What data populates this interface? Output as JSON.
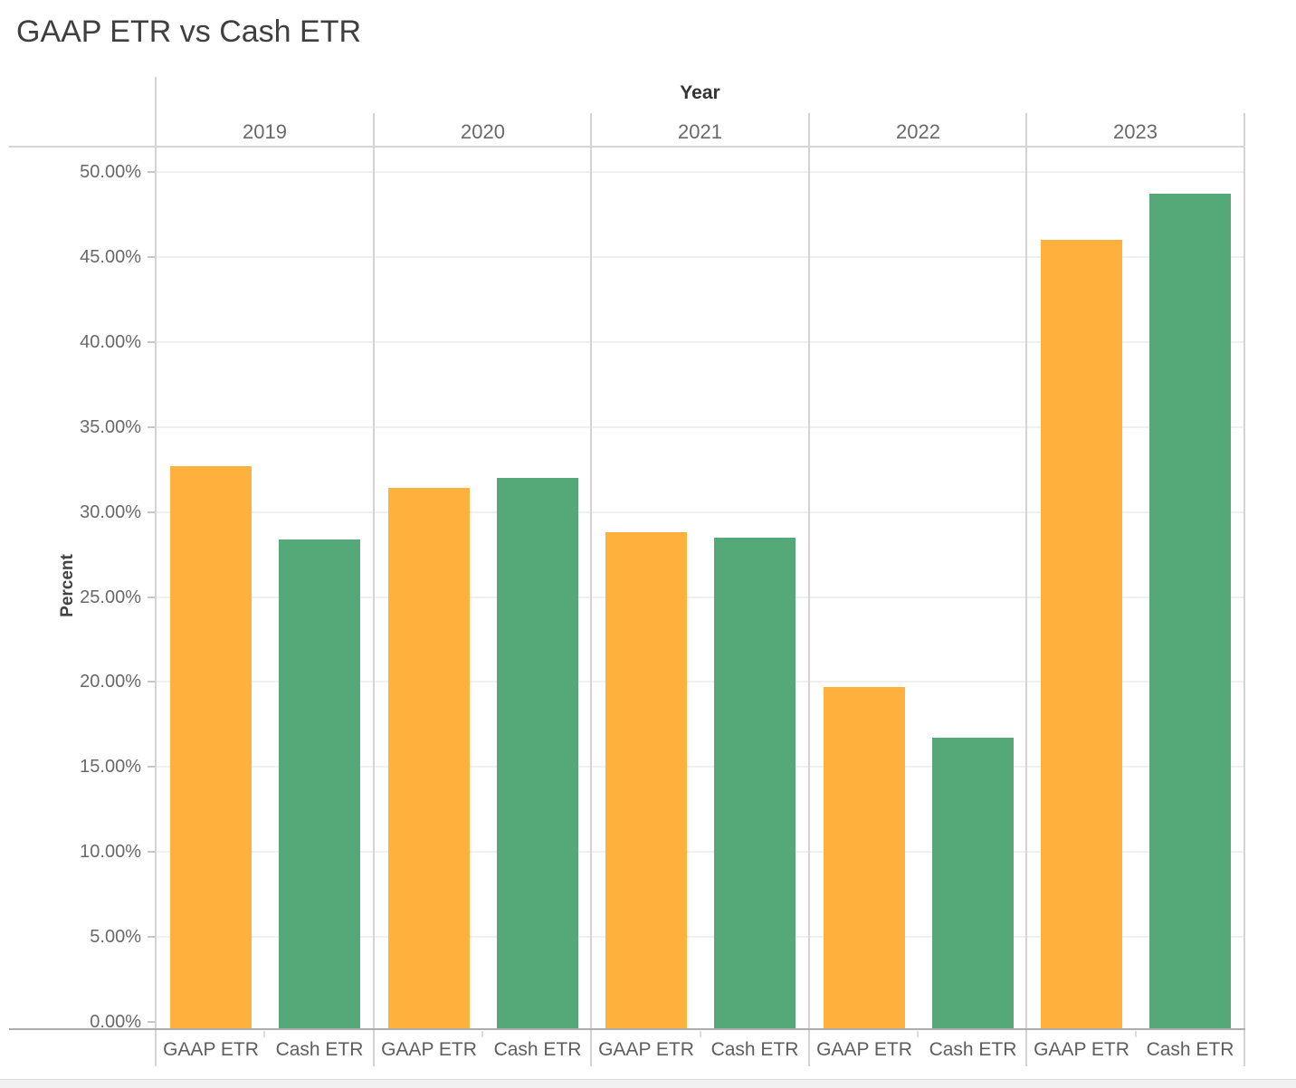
{
  "title": "GAAP ETR vs Cash ETR",
  "header": {
    "x_axis_title": "Year"
  },
  "y_axis": {
    "title": "Percent",
    "tick_labels": [
      "50.00%",
      "45.00%",
      "40.00%",
      "35.00%",
      "30.00%",
      "25.00%",
      "20.00%",
      "15.00%",
      "10.00%",
      "5.00%",
      "0.00%"
    ],
    "tick_values": [
      50,
      45,
      40,
      35,
      30,
      25,
      20,
      15,
      10,
      5,
      0
    ]
  },
  "chart_data": {
    "type": "bar",
    "title": "GAAP ETR vs Cash ETR",
    "categories": [
      "2019",
      "2020",
      "2021",
      "2022",
      "2023"
    ],
    "series": [
      {
        "name": "GAAP ETR",
        "color": "#FFB03D",
        "values": [
          32.7,
          31.4,
          28.8,
          19.7,
          46.0
        ]
      },
      {
        "name": "Cash ETR",
        "color": "#55A878",
        "values": [
          28.4,
          32.0,
          28.5,
          16.7,
          48.7
        ]
      }
    ],
    "xlabel": "Year",
    "ylabel": "Percent",
    "ylim": [
      0,
      51.5
    ],
    "y_tick_step": 5,
    "value_format": "percent",
    "grid": true,
    "legend": "none",
    "group_label_row": [
      "GAAP ETR",
      "Cash ETR"
    ]
  },
  "colors": {
    "gaap_bar": "#FFB03D",
    "cash_bar": "#55A878",
    "gridline": "#F0F0F0",
    "pane_divider": "#D4D4D4",
    "axis_line": "#ACACAC",
    "label_gray": "#696969",
    "title_gray": "#3F3F3F"
  }
}
